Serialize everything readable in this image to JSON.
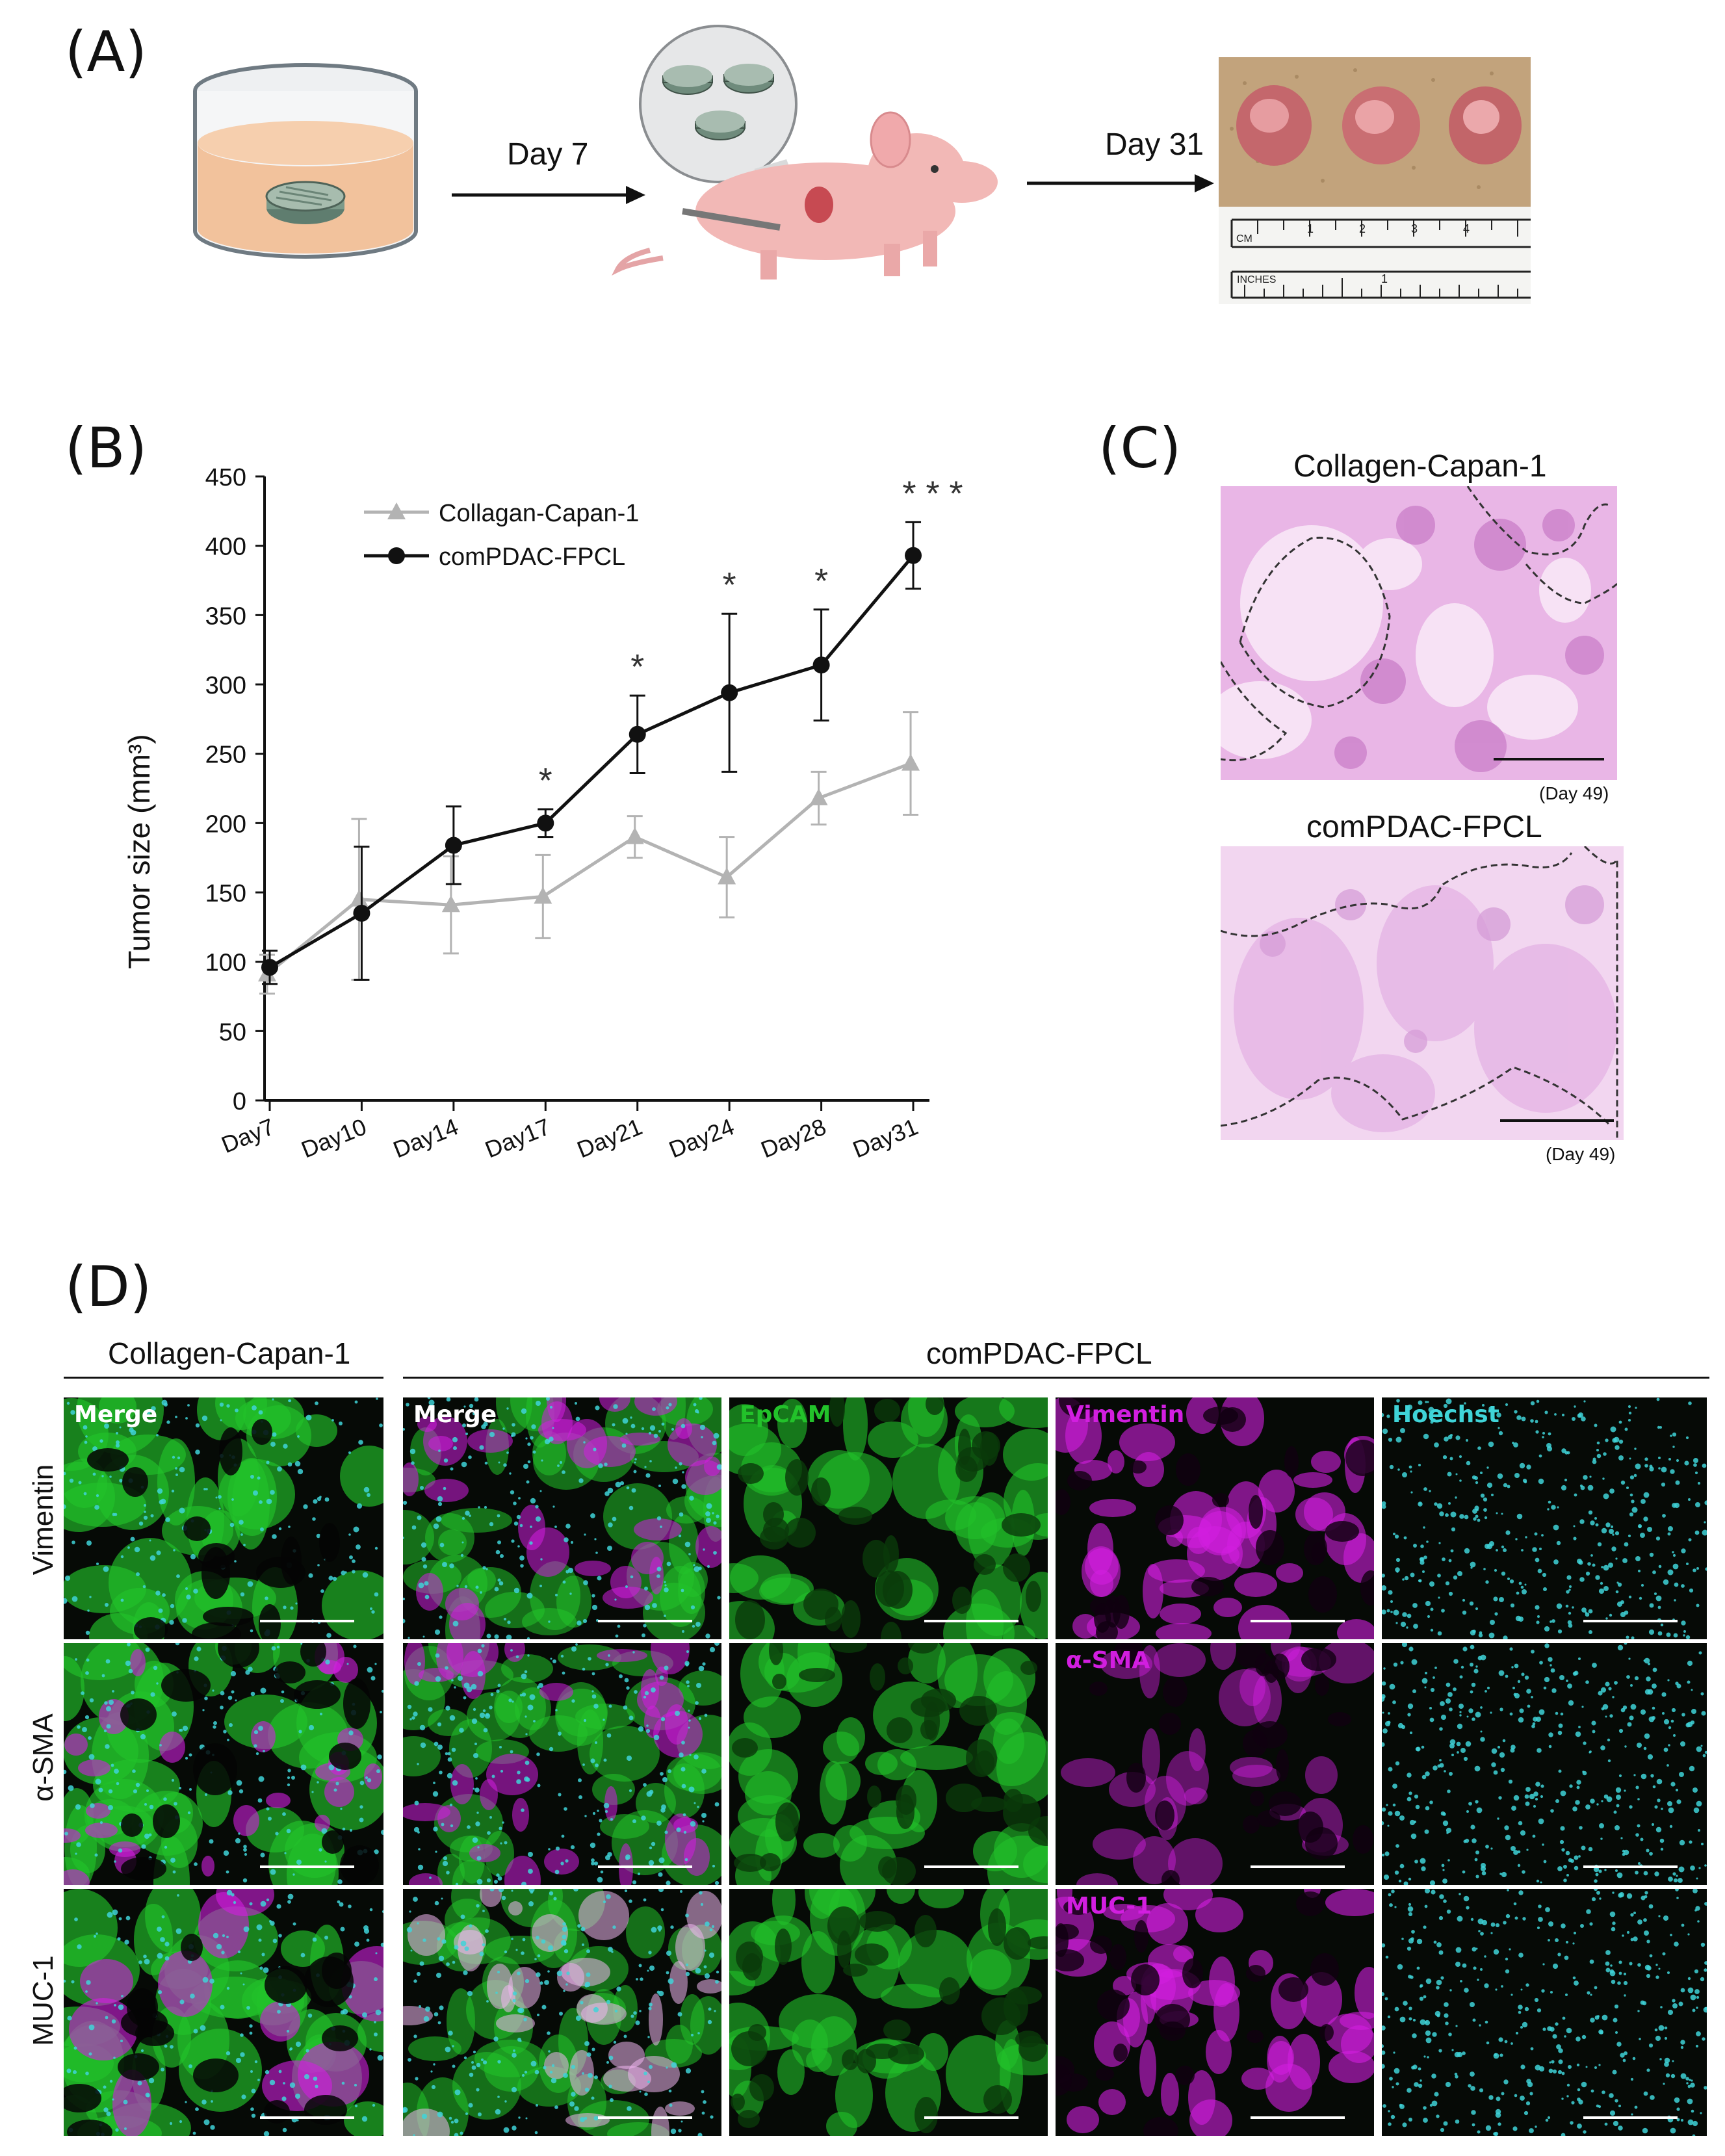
{
  "panels": {
    "a": "(A)",
    "b": "(B)",
    "c": "(C)",
    "d": "(D)"
  },
  "panel_a": {
    "arrow1_label": "Day 7",
    "arrow2_label": "Day 31",
    "ruler_cm": "CM",
    "ruler_inches": "INCHES",
    "ruler_numbers": [
      "1",
      "2",
      "3",
      "4"
    ],
    "ruler_inch_number": "1"
  },
  "chart_data": {
    "type": "line",
    "ylabel": "Tumor size (mm³)",
    "xlabel": "",
    "categories": [
      "Day7",
      "Day10",
      "Day14",
      "Day17",
      "Day21",
      "Day24",
      "Day28",
      "Day31"
    ],
    "yticks": [
      "0",
      "50",
      "100",
      "150",
      "200",
      "250",
      "300",
      "350",
      "400",
      "450"
    ],
    "ylim": [
      0,
      450
    ],
    "grid": false,
    "legend_position": "top-left",
    "series": [
      {
        "name": "Collagan-Capan-1",
        "color": "#b3b3b3",
        "marker": "triangle",
        "values": [
          91,
          145,
          141,
          147,
          190,
          161,
          218,
          243
        ],
        "errors": [
          14,
          58,
          35,
          30,
          15,
          29,
          19,
          37
        ]
      },
      {
        "name": "comPDAC-FPCL",
        "color": "#111111",
        "marker": "circle",
        "values": [
          96,
          135,
          184,
          200,
          264,
          294,
          314,
          393
        ],
        "errors": [
          12,
          48,
          28,
          10,
          28,
          57,
          40,
          24
        ]
      }
    ],
    "significance": [
      {
        "category": "Day17",
        "label": "*"
      },
      {
        "category": "Day21",
        "label": "*"
      },
      {
        "category": "Day24",
        "label": "*"
      },
      {
        "category": "Day28",
        "label": "*"
      },
      {
        "category": "Day31",
        "label": "* * *"
      }
    ]
  },
  "panel_c": {
    "top_title": "Collagen-Capan-1",
    "top_caption": "(Day 49)",
    "bottom_title": "comPDAC-FPCL",
    "bottom_caption": "(Day 49)"
  },
  "panel_d": {
    "group_left": "Collagen-Capan-1",
    "group_right": "comPDAC-FPCL",
    "rows": [
      "Vimentin",
      "α-SMA",
      "MUC-1"
    ],
    "tile_labels": {
      "r0c0": "Merge",
      "r0c1": "Merge",
      "r0c2": "EpCAM",
      "r0c3": "Vimentin",
      "r0c4": "Hoechst",
      "r1c3": "α-SMA",
      "r2c3": "MUC-1"
    },
    "colors": {
      "green": "#22c22a",
      "magenta": "#d21ee0",
      "cyan": "#3fd4d8"
    }
  }
}
